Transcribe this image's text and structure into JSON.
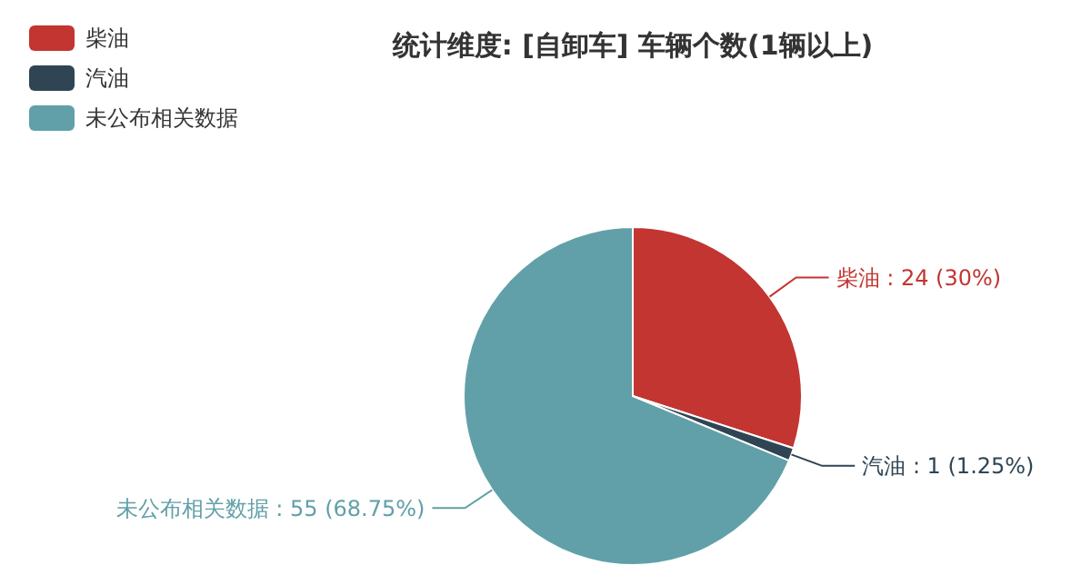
{
  "chart_data": {
    "type": "pie",
    "title": "统计维度: [自卸车] 车辆个数(1辆以上)",
    "categories": [
      "柴油",
      "汽油",
      "未公布相关数据"
    ],
    "values": [
      24,
      1,
      55
    ],
    "colors": [
      "#c23531",
      "#2f4554",
      "#61a0a8"
    ],
    "value_labels": [
      "柴油 : 24 (30%)",
      "汽油 : 1 (1.25%)",
      "未公布相关数据 : 55 (68.75%)"
    ],
    "legend": "top left"
  }
}
